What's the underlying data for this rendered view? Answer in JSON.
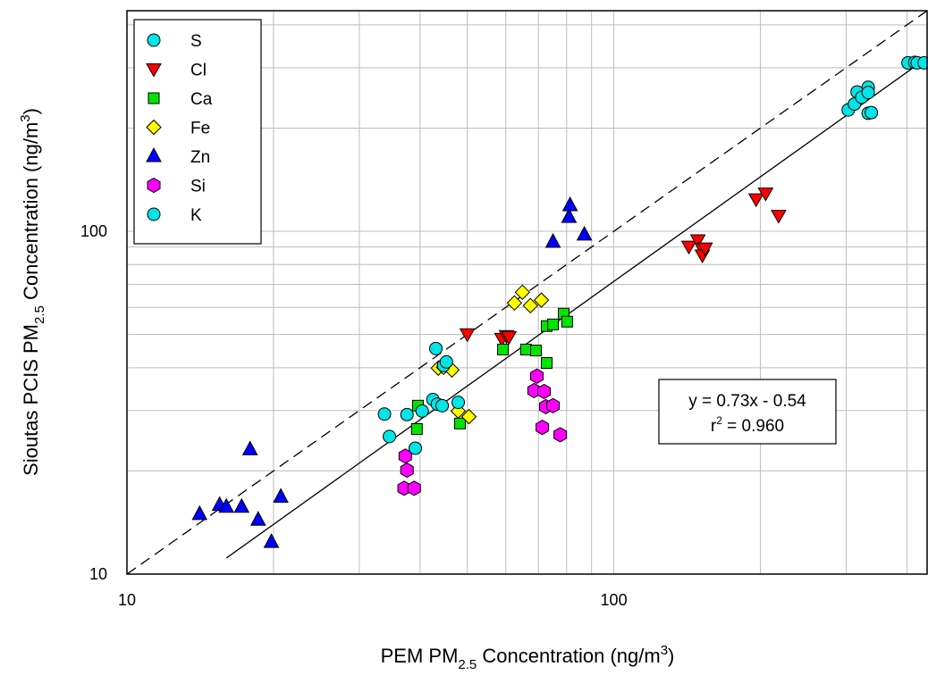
{
  "chart_data": {
    "type": "scatter",
    "log_x": true,
    "log_y": true,
    "grid": true,
    "xlim": [
      10,
      440
    ],
    "ylim": [
      10,
      440
    ],
    "xticks": [
      10,
      100
    ],
    "yticks": [
      10,
      100
    ],
    "minor_xticks": [
      20,
      30,
      40,
      50,
      60,
      70,
      80,
      90,
      200,
      300,
      400
    ],
    "minor_yticks": [
      20,
      30,
      40,
      50,
      60,
      70,
      80,
      90,
      200,
      300,
      400
    ],
    "xlabel": [
      "PEM PM",
      "2.5",
      " Concentration (ng/m",
      "3",
      ")"
    ],
    "ylabel": [
      "Sioutas PCIS PM",
      "2.5",
      " Concentration (ng/m",
      "3",
      ")"
    ],
    "legend": "upper left",
    "annotation": {
      "equation": "y = 0.73x - 0.54",
      "r2": [
        "r",
        "2",
        " = 0.960"
      ]
    },
    "reference_lines": [
      {
        "x": [
          10,
          440
        ],
        "values": [
          10,
          440
        ],
        "dashed": true
      },
      {
        "x": [
          16,
          440
        ],
        "values": [
          11.14,
          320.66
        ],
        "dashed": false
      }
    ],
    "series": [
      {
        "name": "S",
        "marker": "circle",
        "color": "#00e5e5",
        "x": [
          303,
          312,
          316,
          323,
          333,
          333,
          333,
          338,
          402,
          415,
          420,
          434
        ],
        "values": [
          226,
          235,
          255,
          246,
          263,
          254,
          221,
          222,
          310,
          311,
          310,
          310
        ]
      },
      {
        "name": "Cl",
        "marker": "triangle-down",
        "color": "#ff0000",
        "x": [
          50.0,
          58.9,
          60.2,
          60.9,
          142.6,
          148.8,
          152,
          152,
          154,
          196,
          205,
          218
        ],
        "values": [
          50.1,
          48.6,
          49.5,
          49.2,
          90.3,
          94.2,
          88.7,
          85.1,
          89.2,
          124,
          129,
          111
        ]
      },
      {
        "name": "Ca",
        "marker": "square",
        "color": "#00e500",
        "x": [
          39.6,
          39.4,
          48.3,
          59.2,
          66.0,
          69.2,
          72.8,
          72.8,
          75.0,
          78.9,
          80.2
        ],
        "values": [
          31.0,
          26.5,
          27.5,
          45.2,
          45.2,
          44.9,
          41.3,
          52.9,
          53.5,
          57.5,
          54.5
        ]
      },
      {
        "name": "Fe",
        "marker": "diamond",
        "color": "#ffff00",
        "x": [
          43.6,
          44.7,
          46.5,
          47.9,
          50.4,
          62.5,
          64.9,
          67.4,
          71.0
        ],
        "values": [
          39.9,
          40.1,
          39.4,
          29.9,
          28.8,
          61.8,
          66.4,
          60.7,
          63.0
        ]
      },
      {
        "name": "Zn",
        "marker": "triangle-up",
        "color": "#0000ff",
        "x": [
          14.1,
          15.5,
          16.0,
          17.2,
          17.9,
          18.6,
          19.8,
          20.7,
          75.0,
          80.9,
          81.3,
          87.0
        ],
        "values": [
          14.96,
          15.9,
          15.7,
          15.7,
          23.1,
          14.4,
          12.4,
          16.8,
          93.1,
          110,
          119,
          97.7
        ]
      },
      {
        "name": "Si",
        "marker": "hexagon",
        "color": "#ff00ff",
        "x": [
          37.3,
          37.6,
          37.1,
          38.9,
          69.5,
          68.6,
          71.9,
          72.5,
          75.0,
          71.3,
          77.6
        ],
        "values": [
          22.1,
          20.1,
          17.8,
          17.8,
          37.8,
          34.3,
          34.1,
          30.8,
          31.0,
          26.8,
          25.5
        ]
      },
      {
        "name": "K",
        "marker": "circle",
        "color": "#00e5e5",
        "x": [
          33.8,
          34.6,
          37.6,
          39.1,
          40.4,
          42.5,
          43.4,
          44.4,
          44.7,
          45.3,
          47.9,
          43.1
        ],
        "values": [
          29.3,
          25.2,
          29.2,
          23.3,
          29.9,
          32.3,
          31.3,
          31.0,
          40.6,
          41.6,
          31.7,
          45.5
        ]
      }
    ]
  }
}
